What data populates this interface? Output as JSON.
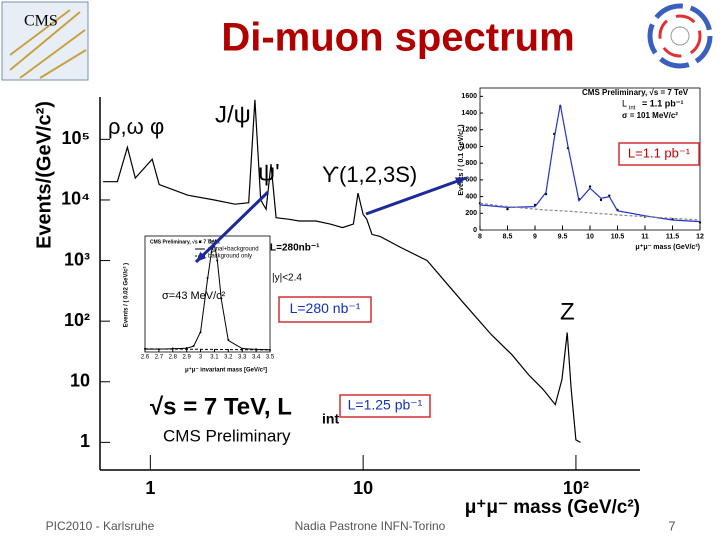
{
  "header": {
    "title": "Di-muon spectrum",
    "logo": "CMS"
  },
  "chart_data": [
    {
      "type": "line",
      "log_x": true,
      "log_y": true,
      "ylabel": "Events/(GeV/c²)",
      "xlabel": "μ⁺μ⁻ mass (GeV/c²)",
      "xlim": [
        0.58,
        200
      ],
      "ylim": [
        0.35,
        500000
      ],
      "xticks": [
        1,
        10,
        {
          "value": 100,
          "label": "10²"
        }
      ],
      "yticks": [
        1,
        10,
        {
          "value": 100,
          "label": "10²"
        },
        {
          "value": 1000,
          "label": "10³"
        },
        {
          "value": 10000,
          "label": "10⁴"
        },
        {
          "value": 100000,
          "label": "10⁵"
        }
      ],
      "x": [
        0.6,
        0.7,
        0.78,
        0.85,
        1.02,
        1.1,
        1.5,
        2.0,
        2.5,
        2.9,
        3.1,
        3.3,
        3.5,
        3.69,
        3.9,
        4.5,
        5,
        6,
        7,
        8,
        9,
        9.46,
        10,
        10.4,
        11,
        12,
        15,
        20,
        25,
        30,
        40,
        50,
        60,
        70,
        80,
        86,
        91,
        95,
        100,
        105
      ],
      "series": [
        {
          "color": "#000000",
          "style": "line",
          "values": [
            20000,
            20000,
            74000,
            23000,
            47000,
            18000,
            12000,
            10000,
            8500,
            9000,
            450000,
            10000,
            7000,
            39000,
            5100,
            4800,
            4500,
            4500,
            4000,
            3500,
            4000,
            13000,
            5800,
            4800,
            2700,
            2500,
            1650,
            1000,
            400,
            190,
            60,
            28,
            13,
            7.5,
            4.2,
            11,
            65,
            7.5,
            1.1,
            1
          ]
        }
      ],
      "annotations": [
        "ρ,ω",
        "φ",
        "J/ψ",
        "ψ'",
        "ϒ(1,2,3S)",
        "Z",
        "√s = 7 TeV,  L",
        "int",
        "=",
        "CMS Preliminary"
      ],
      "luminosity_label": "L=1.25 pb⁻¹"
    },
    {
      "type": "line",
      "title": "CMS Preliminary, √s = 7 TeV",
      "ylabel": "Events / ( 0.02 GeV/c² )",
      "xlabel": "μ⁺μ⁻ invariant mass [GeV/c²]",
      "xlim": [
        2.6,
        3.5
      ],
      "ylim": [
        0,
        4000
      ],
      "xticks": [
        2.6,
        2.7,
        2.8,
        2.9,
        3,
        3.1,
        3.2,
        3.3,
        3.4,
        3.5
      ],
      "x": [
        2.6,
        2.7,
        2.8,
        2.9,
        2.95,
        3.0,
        3.05,
        3.08,
        3.1,
        3.12,
        3.15,
        3.2,
        3.3,
        3.4,
        3.5
      ],
      "series": [
        {
          "name": "data",
          "color": "#000000",
          "style": "points",
          "values": [
            110,
            95,
            120,
            140,
            210,
            680,
            2550,
            3450,
            3750,
            3150,
            1850,
            420,
            110,
            95,
            75
          ]
        },
        {
          "name": "signal+background",
          "color": "#000000",
          "style": "line",
          "values": [
            100,
            100,
            110,
            130,
            200,
            700,
            2500,
            3500,
            3700,
            3200,
            1800,
            400,
            120,
            90,
            80
          ]
        },
        {
          "name": "background only",
          "color": "#000000",
          "style": "dashed",
          "values": [
            110,
            105,
            100,
            96,
            94,
            92,
            90,
            89,
            88,
            87,
            86,
            84,
            80,
            76,
            72
          ]
        }
      ],
      "annotations": [
        "L=280nb⁻¹",
        "|y|<2.4",
        "σ=43 MeV/c²"
      ],
      "luminosity_label": "L=280 nb⁻¹"
    },
    {
      "type": "line",
      "title": "CMS Preliminary, √s = 7 TeV",
      "ylabel": "Events / ( 0.1 GeV/c² )",
      "xlabel": "μ⁺μ⁻ mass (GeV/c²)",
      "xlim": [
        8,
        12
      ],
      "ylim": [
        0,
        1700
      ],
      "xticks": [
        8,
        8.5,
        9,
        9.5,
        10,
        10.5,
        11,
        11.5,
        12
      ],
      "yticks": [
        0,
        200,
        400,
        600,
        800,
        1000,
        1200,
        1400,
        1600
      ],
      "x": [
        8,
        8.5,
        9,
        9.2,
        9.35,
        9.46,
        9.6,
        9.8,
        10.0,
        10.2,
        10.35,
        10.5,
        11,
        11.5,
        12
      ],
      "series": [
        {
          "color": "#000000",
          "style": "points",
          "values": [
            320,
            250,
            300,
            430,
            1150,
            1480,
            980,
            370,
            520,
            360,
            410,
            240,
            160,
            130,
            90
          ]
        },
        {
          "color": "#2233cc",
          "style": "line",
          "values": [
            300,
            270,
            280,
            450,
            1100,
            1500,
            1000,
            350,
            500,
            380,
            400,
            230,
            170,
            120,
            100
          ]
        },
        {
          "color": "#888888",
          "style": "dashed",
          "values": [
            320,
            280,
            250,
            240,
            235,
            230,
            225,
            215,
            205,
            195,
            190,
            180,
            160,
            140,
            120
          ]
        }
      ],
      "annotations": [
        "L",
        "int",
        "= 1.1 pb⁻¹",
        "σ = 101 MeV/c²"
      ],
      "luminosity_label": "L=1.1 pb⁻¹"
    }
  ],
  "footer": {
    "left": "PIC2010 - Karlsruhe",
    "center": "Nadia Pastrone INFN-Torino",
    "page": "7"
  }
}
